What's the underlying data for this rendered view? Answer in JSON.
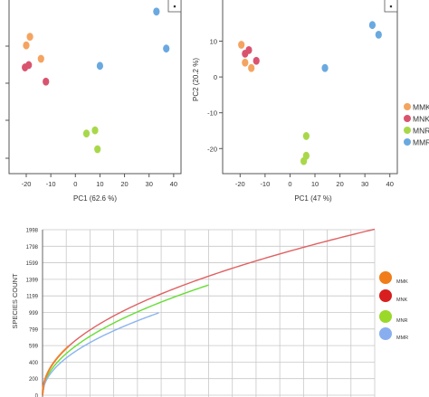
{
  "colors": {
    "MMK": "#f4a460",
    "MNK": "#d9536f",
    "MNR": "#a8d84a",
    "MMR": "#6aa9e0",
    "rare_MMK": "#f07d1a",
    "rare_MNK": "#d81e1e",
    "rare_MNR": "#9ad82a",
    "rare_MMR": "#88aef0",
    "rare_curve_MMK": "#f08030",
    "rare_curve_MNK": "#e06060",
    "rare_curve_MNR": "#66dd33",
    "rare_curve_MMR": "#8ab4ee"
  },
  "chart_data": [
    {
      "type": "scatter",
      "xlabel": "PC1 (62.6 %)",
      "ylabel": "",
      "xlim": [
        -27,
        43
      ],
      "xticks": [
        -20,
        -10,
        0,
        10,
        20,
        30,
        40
      ],
      "legend_marker": "▪",
      "series": [
        {
          "name": "MMK",
          "points": [
            [
              -18.5,
              0.9
            ],
            [
              -20,
              -0.2
            ],
            [
              -14,
              -1.9
            ]
          ]
        },
        {
          "name": "MNK",
          "points": [
            [
              -19,
              -2.7
            ],
            [
              -20.5,
              -3.0
            ],
            [
              -12,
              -4.8
            ]
          ]
        },
        {
          "name": "MNR",
          "points": [
            [
              4.5,
              -11.4
            ],
            [
              8,
              -11
            ],
            [
              9,
              -13.4
            ]
          ]
        },
        {
          "name": "MMR",
          "points": [
            [
              33,
              4.1
            ],
            [
              37,
              -0.6
            ],
            [
              10,
              -2.8
            ]
          ]
        }
      ],
      "ylim": [
        -16.5,
        5.8
      ]
    },
    {
      "type": "scatter",
      "xlabel": "PC1 (47 %)",
      "ylabel": "PC2 (20.2 %)",
      "xlim": [
        -27,
        43
      ],
      "ylim": [
        -27,
        22
      ],
      "xticks": [
        -20,
        -10,
        0,
        10,
        20,
        30,
        40
      ],
      "xtick_labels": [
        "-20",
        "-10",
        "0",
        "10",
        "20",
        "30",
        "40"
      ],
      "yticks": [
        10,
        0,
        -10,
        -20
      ],
      "ytick_labels": [
        "10",
        "0",
        "-10",
        "-20"
      ],
      "legend_marker": "▪",
      "legend": [
        "MMK",
        "MNK",
        "MNR",
        "MMR"
      ],
      "legend_labels": [
        "MMK",
        "MNK",
        "MNR",
        "MMR"
      ],
      "series": [
        {
          "name": "MMK",
          "points": [
            [
              -19.5,
              9
            ],
            [
              -18,
              4
            ],
            [
              -15.5,
              2.5
            ]
          ]
        },
        {
          "name": "MNK",
          "points": [
            [
              -18,
              6.5
            ],
            [
              -16.5,
              7.5
            ],
            [
              -13.5,
              4.5
            ]
          ]
        },
        {
          "name": "MNR",
          "points": [
            [
              6.5,
              -16.5
            ],
            [
              6.5,
              -22
            ],
            [
              5.5,
              -23.5
            ]
          ]
        },
        {
          "name": "MMR",
          "points": [
            [
              33,
              14.5
            ],
            [
              35.5,
              11.8
            ],
            [
              14,
              2.5
            ]
          ]
        }
      ]
    },
    {
      "type": "line",
      "ylabel": "SPECIES COUNT",
      "ylim": [
        0,
        1998
      ],
      "xlim": [
        0,
        140
      ],
      "grid": true,
      "yticks": [
        0,
        200,
        400,
        599,
        799,
        999,
        1199,
        1399,
        1599,
        1798,
        1998
      ],
      "ytick_labels": [
        "0",
        "200",
        "400",
        "599",
        "799",
        "999",
        "1199",
        "1399",
        "1599",
        "1798",
        "1998"
      ],
      "xgrid": [
        10,
        20,
        30,
        40,
        50,
        60,
        70,
        80,
        90,
        100,
        110,
        120,
        130,
        140
      ],
      "legend": [
        "MMK",
        "MNK",
        "MNR",
        "MMR"
      ],
      "legend_labels": [
        "MMK",
        "MNK",
        "MNR",
        "MMR"
      ],
      "series": [
        {
          "name": "MMK",
          "a": 187,
          "p": 0.48,
          "xmax": 11
        },
        {
          "name": "MNK",
          "a": 187,
          "p": 0.48,
          "xmax": 140
        },
        {
          "name": "MNR",
          "a": 159,
          "p": 0.5,
          "xmax": 70
        },
        {
          "name": "MMR",
          "a": 142,
          "p": 0.5,
          "xmax": 49
        }
      ]
    }
  ]
}
